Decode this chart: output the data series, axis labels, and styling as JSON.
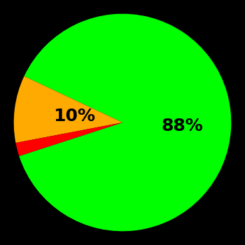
{
  "slices": [
    88,
    10,
    2
  ],
  "colors": [
    "#00ff00",
    "#ffaa00",
    "#ff0000"
  ],
  "labels": [
    "88%",
    "10%",
    ""
  ],
  "background_color": "#000000",
  "startangle": 198,
  "label_fontsize": 18,
  "label_color": "#000000",
  "figsize": [
    3.5,
    3.5
  ],
  "dpi": 100
}
